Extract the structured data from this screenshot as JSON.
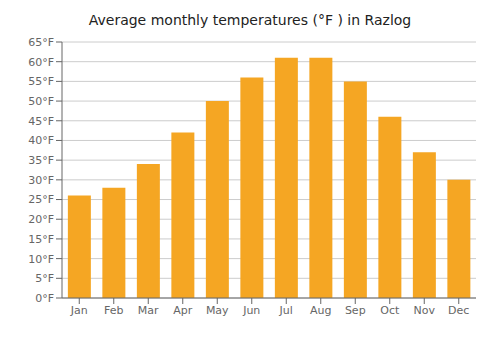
{
  "chart_data": {
    "type": "bar",
    "title": "Average monthly temperatures (°F ) in Razlog",
    "categories": [
      "Jan",
      "Feb",
      "Mar",
      "Apr",
      "May",
      "Jun",
      "Jul",
      "Aug",
      "Sep",
      "Oct",
      "Nov",
      "Dec"
    ],
    "values": [
      26,
      28,
      34,
      42,
      50,
      56,
      61,
      61,
      55,
      46,
      37,
      30
    ],
    "color": "#F5A623",
    "ylim": [
      0,
      65
    ],
    "yticks": [
      {
        "value": 0,
        "label": "0°F"
      },
      {
        "value": 5,
        "label": "5°F"
      },
      {
        "value": 10,
        "label": "10°F"
      },
      {
        "value": 15,
        "label": "15°F"
      },
      {
        "value": 20,
        "label": "20°F"
      },
      {
        "value": 25,
        "label": "25°F"
      },
      {
        "value": 30,
        "label": "30°F"
      },
      {
        "value": 35,
        "label": "35°F"
      },
      {
        "value": 40,
        "label": "40°F"
      },
      {
        "value": 45,
        "label": "45°F"
      },
      {
        "value": 50,
        "label": "50°F"
      },
      {
        "value": 55,
        "label": "55°F"
      },
      {
        "value": 60,
        "label": "60°F"
      },
      {
        "value": 65,
        "label": "65°F"
      }
    ],
    "grid": true
  }
}
